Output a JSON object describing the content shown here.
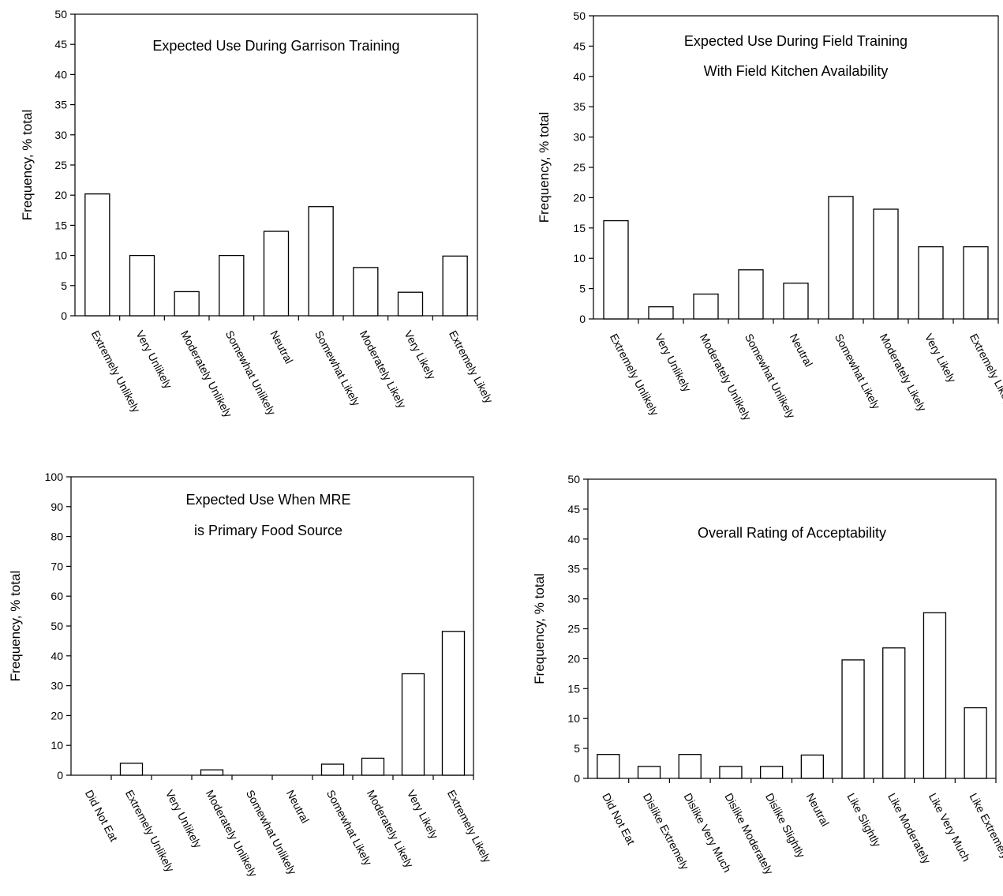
{
  "chart_data": [
    {
      "type": "bar",
      "title_lines": [
        "Expected Use During Garrison Training"
      ],
      "ylabel": "Frequency, % total",
      "xlabel": "",
      "ylim": [
        0,
        50
      ],
      "yticks": [
        0,
        5,
        10,
        15,
        20,
        25,
        30,
        35,
        40,
        45,
        50
      ],
      "categories": [
        "Extremely Unlikely",
        "Very Unlikely",
        "Moderately Unlikely",
        "Somewhat Unlikely",
        "Neutral",
        "Somewhat Likely",
        "Moderately Likely",
        "Very Likely",
        "Extremely Likely"
      ],
      "values": [
        20.2,
        10,
        4,
        10,
        14,
        18.1,
        8,
        3.9,
        9.9
      ],
      "grid": false,
      "legend": "none"
    },
    {
      "type": "bar",
      "title_lines": [
        "Expected Use During Field Training",
        "With Field Kitchen Availability"
      ],
      "ylabel": "Frequency, % total",
      "xlabel": "",
      "ylim": [
        0,
        50
      ],
      "yticks": [
        0,
        5,
        10,
        15,
        20,
        25,
        30,
        35,
        40,
        45,
        50
      ],
      "categories": [
        "Extremely Unlikely",
        "Very Unlikely",
        "Moderately Unlikely",
        "Somewhat Unlikely",
        "Neutral",
        "Somewhat Likely",
        "Moderately Likely",
        "Very Likely",
        "Extremely Likely"
      ],
      "values": [
        16.2,
        2,
        4.1,
        8.1,
        5.9,
        20.2,
        18.1,
        11.9,
        11.9
      ],
      "grid": false,
      "legend": "none"
    },
    {
      "type": "bar",
      "title_lines": [
        "Expected Use When MRE",
        "is Primary Food Source"
      ],
      "ylabel": "Frequency, % total",
      "xlabel": "",
      "ylim": [
        0,
        100
      ],
      "yticks": [
        0,
        10,
        20,
        30,
        40,
        50,
        60,
        70,
        80,
        90,
        100
      ],
      "categories": [
        "Did Not Eat",
        "Extremely Unlikely",
        "Very Unlikely",
        "Moderately Unlikely",
        "Somewhat Unlikely",
        "Neutral",
        "Somewhat Likely",
        "Moderately Likely",
        "Very Likely",
        "Extremely Likely"
      ],
      "values": [
        0,
        4,
        0,
        1.8,
        0,
        0,
        3.7,
        5.7,
        34,
        48.2
      ],
      "grid": false,
      "legend": "none"
    },
    {
      "type": "bar",
      "title_lines": [
        "Overall Rating of Acceptability"
      ],
      "ylabel": "Frequency, % total",
      "xlabel": "",
      "ylim": [
        0,
        50
      ],
      "yticks": [
        0,
        5,
        10,
        15,
        20,
        25,
        30,
        35,
        40,
        45,
        50
      ],
      "categories": [
        "Did Not Eat",
        "Dislike Extremely",
        "Dislike Very Much",
        "Dislike Moderately",
        "Dislike Slightly",
        "Neutral",
        "Like Slightly",
        "Like Moderately",
        "Like Very Much",
        "Like Extremely"
      ],
      "values": [
        4,
        2,
        4,
        2,
        2,
        3.9,
        19.8,
        21.8,
        27.7,
        11.8
      ],
      "grid": false,
      "legend": "none"
    }
  ]
}
